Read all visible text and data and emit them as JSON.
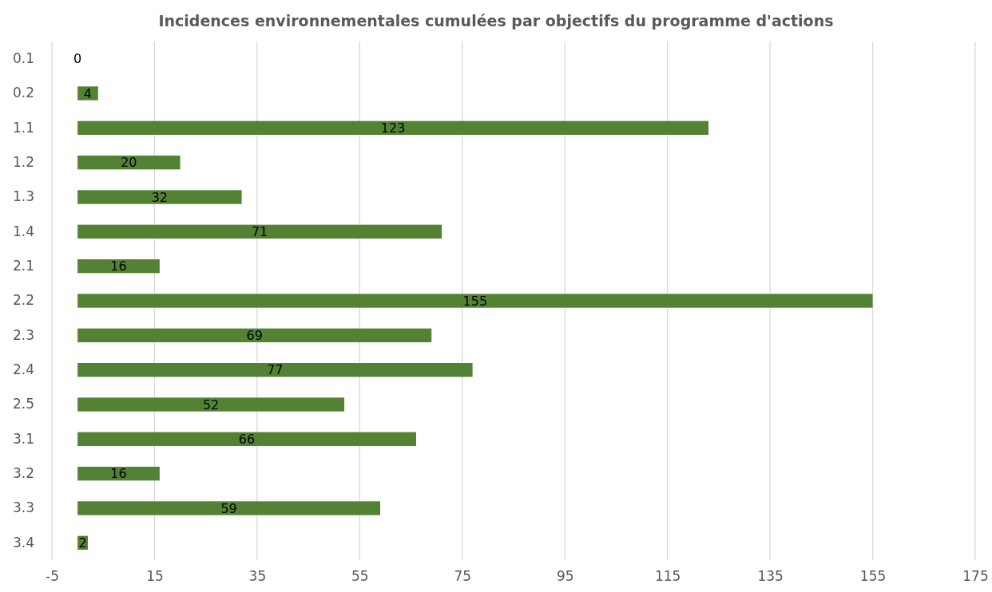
{
  "chart_data": {
    "type": "bar",
    "orientation": "horizontal",
    "title": "Incidences environnementales cumulées par objectifs du programme d'actions",
    "categories": [
      "0.1",
      "0.2",
      "1.1",
      "1.2",
      "1.3",
      "1.4",
      "2.1",
      "2.2",
      "2.3",
      "2.4",
      "2.5",
      "3.1",
      "3.2",
      "3.3",
      "3.4"
    ],
    "values": [
      0,
      4,
      123,
      20,
      32,
      71,
      16,
      155,
      69,
      77,
      52,
      66,
      16,
      59,
      2
    ],
    "color": "#548235",
    "xlim": [
      -5,
      175
    ],
    "xticks": [
      -5,
      15,
      35,
      55,
      75,
      95,
      115,
      135,
      155,
      175
    ],
    "grid": "x",
    "data_labels": true
  }
}
